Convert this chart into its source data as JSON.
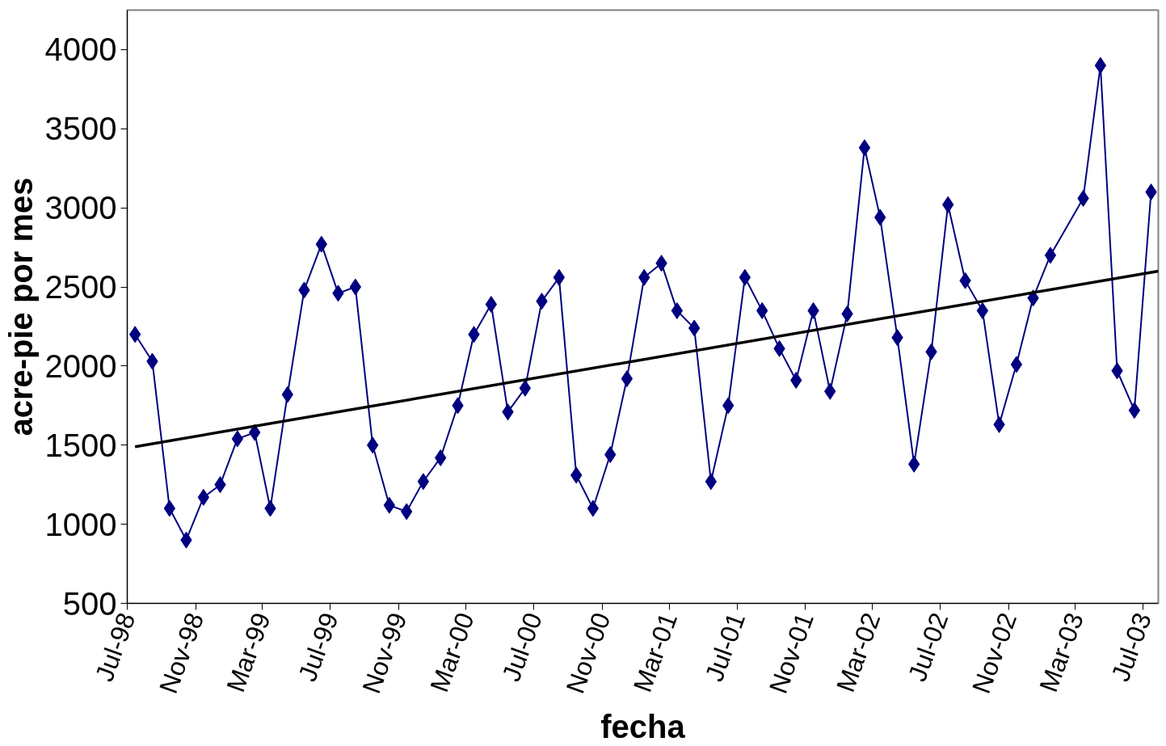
{
  "chart_data": {
    "type": "line",
    "xlabel": "fecha",
    "ylabel": "acre-pie por mes",
    "x": [
      "1998-07-15",
      "1998-08-15",
      "1998-09-15",
      "1998-10-15",
      "1998-11-15",
      "1998-12-15",
      "1999-01-15",
      "1999-02-15",
      "1999-03-15",
      "1999-04-15",
      "1999-05-15",
      "1999-06-15",
      "1999-07-15",
      "1999-08-15",
      "1999-09-15",
      "1999-10-15",
      "1999-11-15",
      "1999-12-15",
      "2000-01-15",
      "2000-02-15",
      "2000-03-15",
      "2000-04-15",
      "2000-05-15",
      "2000-06-15",
      "2000-07-15",
      "2000-08-15",
      "2000-09-15",
      "2000-10-15",
      "2000-11-15",
      "2000-12-15",
      "2001-01-15",
      "2001-02-15",
      "2001-03-15",
      "2001-04-15",
      "2001-05-15",
      "2001-06-15",
      "2001-07-15",
      "2001-08-15",
      "2001-09-15",
      "2001-10-15",
      "2001-11-15",
      "2001-12-15",
      "2002-01-15",
      "2002-02-15",
      "2002-03-15",
      "2002-04-15",
      "2002-05-15",
      "2002-06-15",
      "2002-07-15",
      "2002-08-15",
      "2002-09-15",
      "2002-10-15",
      "2002-11-15",
      "2002-12-15",
      "2003-01-15",
      "2003-03-15",
      "2003-04-15",
      "2003-05-15",
      "2003-06-15",
      "2003-07-15"
    ],
    "series": [
      {
        "color": "#000080",
        "marker": "diamond",
        "values": [
          2200,
          2030,
          1100,
          900,
          1170,
          1250,
          1540,
          1580,
          1100,
          1820,
          2480,
          2770,
          2460,
          2500,
          1500,
          1120,
          1080,
          1270,
          1420,
          1750,
          2200,
          2390,
          1710,
          1860,
          2410,
          2560,
          1310,
          1100,
          1440,
          1920,
          2560,
          2650,
          2350,
          2240,
          1270,
          1750,
          2560,
          2350,
          2110,
          1910,
          2350,
          1840,
          2330,
          3380,
          2940,
          2180,
          1380,
          2090,
          3020,
          2540,
          2350,
          1630,
          2010,
          2430,
          2700,
          3060,
          3900,
          1970,
          1720,
          3100
        ]
      },
      {
        "type": "line",
        "color": "#000000",
        "marker": "none",
        "x": [
          "1998-07-15",
          "2003-07-28"
        ],
        "values": [
          1490,
          2600
        ]
      }
    ],
    "xlim": [
      "1998-07-01",
      "2003-07-28"
    ],
    "xticks": [
      {
        "value": "1998-07-01",
        "label": "Jul-98"
      },
      {
        "value": "1998-11-01",
        "label": "Nov-98"
      },
      {
        "value": "1999-03-01",
        "label": "Mar-99"
      },
      {
        "value": "1999-07-01",
        "label": "Jul-99"
      },
      {
        "value": "1999-11-01",
        "label": "Nov-99"
      },
      {
        "value": "2000-03-01",
        "label": "Mar-00"
      },
      {
        "value": "2000-07-01",
        "label": "Jul-00"
      },
      {
        "value": "2000-11-01",
        "label": "Nov-00"
      },
      {
        "value": "2001-03-01",
        "label": "Mar-01"
      },
      {
        "value": "2001-07-01",
        "label": "Jul-01"
      },
      {
        "value": "2001-11-01",
        "label": "Nov-01"
      },
      {
        "value": "2002-03-01",
        "label": "Mar-02"
      },
      {
        "value": "2002-07-01",
        "label": "Jul-02"
      },
      {
        "value": "2002-11-01",
        "label": "Nov-02"
      },
      {
        "value": "2003-03-01",
        "label": "Mar-03"
      },
      {
        "value": "2003-07-01",
        "label": "Jul-03"
      }
    ],
    "ylim": [
      500,
      4250
    ],
    "yticks": [
      500,
      1000,
      1500,
      2000,
      2500,
      3000,
      3500,
      4000
    ],
    "grid": false,
    "line_style": "solid"
  }
}
